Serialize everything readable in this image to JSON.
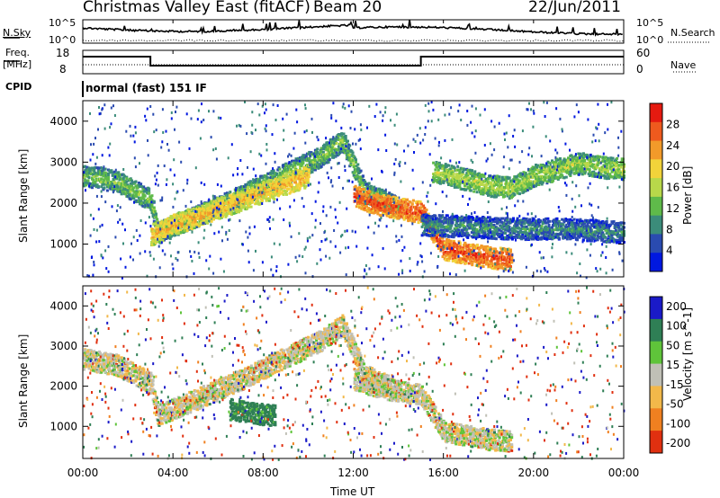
{
  "header": {
    "station": "Christmas Valley East (fitACF)",
    "beam": "Beam 20",
    "date": "22/Jun/2011"
  },
  "status_panel": {
    "nsky_label": "N.Sky",
    "nsky_top": "10^5",
    "nsky_bottom": "10^0",
    "nsearch_label": "N.Search",
    "nsearch_top": "10^5",
    "nsearch_bottom": "10^0",
    "freq_label": "Freq.",
    "freq_unit": "[MHz]",
    "freq_top": "18",
    "freq_bottom": "8",
    "nave_label": "Nave",
    "nave_top": "60",
    "nave_bottom": "0",
    "cpid_label": "CPID",
    "cpid_value": "normal (fast) 151 IF"
  },
  "colors": {
    "power_scale": [
      "#0018e0",
      "#2a4bb0",
      "#3b8c7a",
      "#5fba4a",
      "#b8d84a",
      "#f2d33a",
      "#f29a2a",
      "#ee5a1e",
      "#e51a10"
    ],
    "velocity_scale": [
      "#1a1ac8",
      "#2f7f55",
      "#5fc43a",
      "#c0c0b6",
      "#f2b84a",
      "#f08020",
      "#e03010"
    ]
  },
  "chart_data": [
    {
      "type": "heatmap",
      "title": "Power",
      "ylabel": "Slant Range [km]",
      "ylim": [
        200,
        4500
      ],
      "yticks": [
        "1000",
        "2000",
        "3000",
        "4000"
      ],
      "colorbar_label": "Power [dB]",
      "colorbar_ticks": [
        "4",
        "8",
        "12",
        "16",
        "20",
        "24",
        "28"
      ],
      "colorbar_range": [
        0,
        32
      ],
      "bands": [
        {
          "x": [
            0,
            1.5,
            3.0,
            3.3,
            5,
            7,
            9,
            10.5,
            11.5,
            12.5,
            14.0
          ],
          "y": [
            2700,
            2550,
            2100,
            1300,
            1700,
            2200,
            2750,
            3150,
            3550,
            2300,
            1900
          ],
          "power": 14
        },
        {
          "x": [
            3.0,
            4,
            5,
            6,
            7,
            8,
            9,
            10
          ],
          "y": [
            1250,
            1500,
            1700,
            1900,
            2100,
            2300,
            2500,
            2700
          ],
          "power": 22
        },
        {
          "x": [
            12,
            13,
            14,
            15,
            16,
            17,
            18,
            19
          ],
          "y": [
            2200,
            2000,
            1900,
            1800,
            900,
            800,
            700,
            650
          ],
          "power": 28
        },
        {
          "x": [
            15.5,
            17,
            18,
            19,
            20,
            21,
            22,
            23,
            24
          ],
          "y": [
            2800,
            2600,
            2450,
            2400,
            2700,
            2850,
            3000,
            2900,
            2850
          ],
          "power": 16
        },
        {
          "x": [
            15,
            17,
            19,
            21,
            23,
            24
          ],
          "y": [
            1500,
            1450,
            1400,
            1400,
            1350,
            1300
          ],
          "power": 10
        }
      ]
    },
    {
      "type": "heatmap",
      "title": "Velocity",
      "ylabel": "Slant Range [km]",
      "ylim": [
        200,
        4500
      ],
      "yticks": [
        "1000",
        "2000",
        "3000",
        "4000"
      ],
      "colorbar_label": "Velocity [m s^-1]",
      "colorbar_ticks": [
        "200",
        "100",
        "50",
        "15",
        "-15",
        "-50",
        "-100",
        "-200"
      ],
      "colorbar_range": [
        -250,
        250
      ],
      "bands": [
        {
          "x": [
            0,
            1.5,
            3.0,
            3.3,
            5,
            7,
            9,
            10.5,
            11.5,
            12.5,
            14.0
          ],
          "y": [
            2700,
            2550,
            2100,
            1300,
            1700,
            2200,
            2750,
            3150,
            3550,
            2300,
            1900
          ],
          "velocity": -5
        },
        {
          "x": [
            12,
            13,
            14,
            15,
            16,
            17,
            18,
            19
          ],
          "y": [
            2200,
            2000,
            1900,
            1800,
            900,
            800,
            700,
            650
          ],
          "velocity": 0
        },
        {
          "x": [
            6.5,
            7.5,
            8.5
          ],
          "y": [
            1450,
            1350,
            1300
          ],
          "velocity": 60
        }
      ],
      "xlabel": "Time UT",
      "xticks": [
        "00:00",
        "04:00",
        "08:00",
        "12:00",
        "16:00",
        "20:00",
        "00:00"
      ],
      "xlim": [
        0,
        24
      ]
    }
  ]
}
